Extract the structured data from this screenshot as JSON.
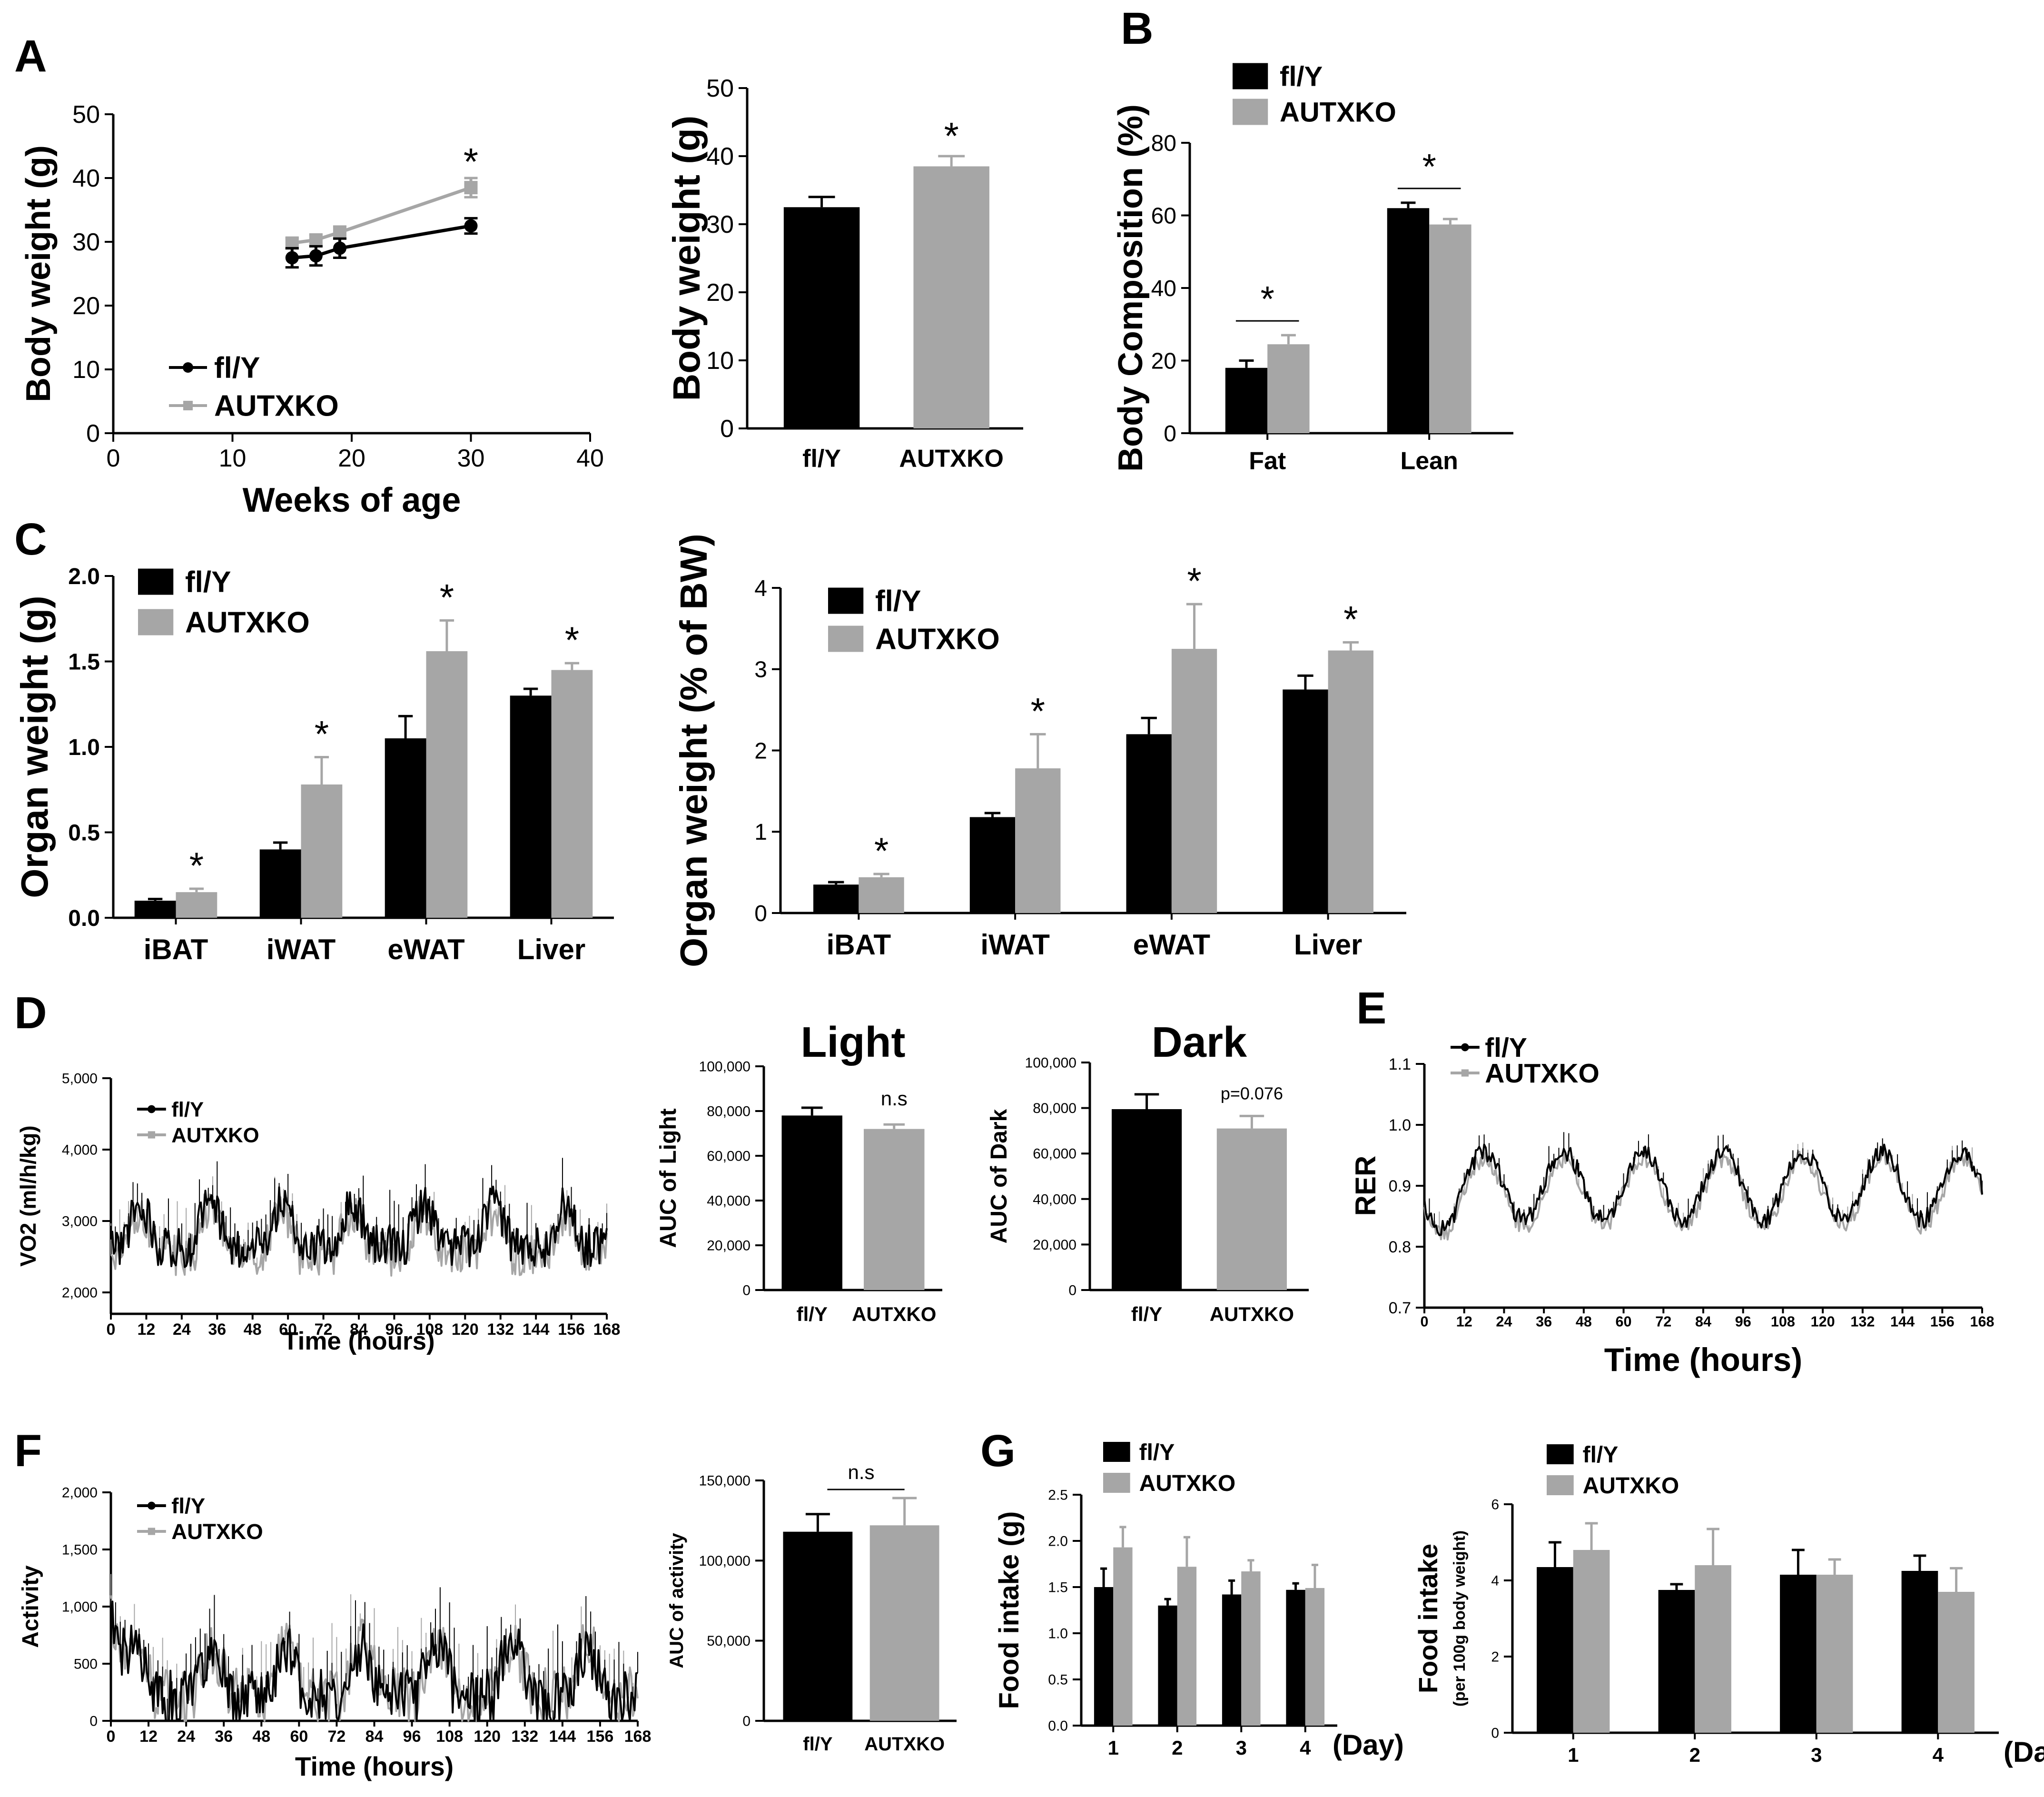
{
  "colors": {
    "fl": "#000000",
    "ko": "#a6a6a6"
  },
  "legend": {
    "fl": "fl/Y",
    "ko": "AUTXKO"
  },
  "panels": {
    "A": "A",
    "B": "B",
    "C": "C",
    "D": "D",
    "E": "E",
    "F": "F",
    "G": "G"
  },
  "chart_data": [
    {
      "id": "A1",
      "type": "line",
      "panel": "A",
      "xlabel": "Weeks of age",
      "ylabel": "Body weight (g)",
      "xlim": [
        0,
        40
      ],
      "ylim": [
        0,
        50
      ],
      "xticks": [
        0,
        10,
        20,
        30,
        40
      ],
      "yticks": [
        0,
        10,
        20,
        30,
        40,
        50
      ],
      "legend_position": "bottom-left",
      "series": [
        {
          "name": "fl/Y",
          "x": [
            15,
            17,
            19,
            30
          ],
          "y": [
            27.5,
            27.8,
            29.0,
            32.5
          ],
          "err": [
            1.5,
            1.5,
            1.5,
            1.2
          ]
        },
        {
          "name": "AUTXKO",
          "x": [
            15,
            17,
            19,
            30
          ],
          "y": [
            29.8,
            30.3,
            31.5,
            38.5
          ],
          "err": [
            0.8,
            0.8,
            0.9,
            1.5
          ]
        }
      ],
      "annotations": [
        {
          "x": 30,
          "y": 42,
          "text": "*"
        }
      ]
    },
    {
      "id": "A2",
      "type": "bar",
      "panel": "A",
      "ylabel": "Body weight (g)",
      "ylim": [
        0,
        50
      ],
      "yticks": [
        0,
        10,
        20,
        30,
        40,
        50
      ],
      "categories": [
        "fl/Y",
        "AUTXKO"
      ],
      "values": [
        32.5,
        38.5
      ],
      "err": [
        1.5,
        1.5
      ],
      "annotations": [
        {
          "bar": 1,
          "text": "*"
        }
      ]
    },
    {
      "id": "B",
      "type": "bar",
      "panel": "B",
      "ylabel": "Body Composition (%)",
      "ylim": [
        0,
        80
      ],
      "yticks": [
        0,
        20,
        40,
        60,
        80
      ],
      "categories": [
        "Fat",
        "Lean"
      ],
      "series": [
        {
          "name": "fl/Y",
          "values": [
            18,
            62
          ],
          "err": [
            2,
            1.5
          ]
        },
        {
          "name": "AUTXKO",
          "values": [
            24.5,
            57.5
          ],
          "err": [
            2.5,
            1.5
          ]
        }
      ],
      "legend_position": "top-left",
      "annotations": [
        {
          "category": 0,
          "text": "*"
        },
        {
          "category": 1,
          "text": "*"
        }
      ]
    },
    {
      "id": "C1",
      "type": "bar",
      "panel": "C",
      "ylabel": "Organ weight (g)",
      "ylim": [
        0,
        2.0
      ],
      "yticks": [
        "0.0",
        "0.5",
        "1.0",
        "1.5",
        "2.0"
      ],
      "categories": [
        "iBAT",
        "iWAT",
        "eWAT",
        "Liver"
      ],
      "series": [
        {
          "name": "fl/Y",
          "values": [
            0.1,
            0.4,
            1.05,
            1.3
          ],
          "err": [
            0.01,
            0.04,
            0.13,
            0.04
          ]
        },
        {
          "name": "AUTXKO",
          "values": [
            0.15,
            0.78,
            1.56,
            1.45
          ],
          "err": [
            0.02,
            0.16,
            0.18,
            0.04
          ]
        }
      ],
      "legend_position": "top-left",
      "annotations": [
        {
          "category": 0,
          "text": "*"
        },
        {
          "category": 1,
          "text": "*"
        },
        {
          "category": 2,
          "text": "*"
        },
        {
          "category": 3,
          "text": "*"
        }
      ]
    },
    {
      "id": "C2",
      "type": "bar",
      "panel": "C",
      "ylabel": "Organ weight (% of BW)",
      "ylim": [
        0,
        4
      ],
      "yticks": [
        0,
        1,
        2,
        3,
        4
      ],
      "categories": [
        "iBAT",
        "iWAT",
        "eWAT",
        "Liver"
      ],
      "series": [
        {
          "name": "fl/Y",
          "values": [
            0.35,
            1.18,
            2.2,
            2.75
          ],
          "err": [
            0.03,
            0.05,
            0.2,
            0.17
          ]
        },
        {
          "name": "AUTXKO",
          "values": [
            0.44,
            1.78,
            3.25,
            3.23
          ],
          "err": [
            0.04,
            0.42,
            0.55,
            0.1
          ]
        }
      ],
      "legend_position": "top-left",
      "annotations": [
        {
          "category": 0,
          "text": "*"
        },
        {
          "category": 1,
          "text": "*"
        },
        {
          "category": 2,
          "text": "*"
        },
        {
          "category": 3,
          "text": "*"
        }
      ]
    },
    {
      "id": "D1",
      "type": "line",
      "panel": "D",
      "xlabel": "Time (hours)",
      "ylabel": "VO2 (ml/h/kg)",
      "xlim": [
        0,
        168
      ],
      "ylim": [
        1700,
        5000
      ],
      "xticks": [
        0,
        12,
        24,
        36,
        48,
        60,
        72,
        84,
        96,
        108,
        120,
        132,
        144,
        156,
        168
      ],
      "yticks": [
        "2,000",
        "3,000",
        "4,000",
        "5,000"
      ],
      "legend_position": "top-left",
      "signal": {
        "kind": "vo2"
      },
      "series": [
        {
          "name": "fl/Y"
        },
        {
          "name": "AUTXKO"
        }
      ]
    },
    {
      "id": "D2",
      "type": "bar",
      "panel": "D",
      "title": "Light",
      "ylabel": "AUC of Light",
      "ylim": [
        0,
        100000
      ],
      "yticks": [
        "0",
        "20,000",
        "40,000",
        "60,000",
        "80,000",
        "100,000"
      ],
      "categories": [
        "fl/Y",
        "AUTXKO"
      ],
      "values": [
        78000,
        72000
      ],
      "err": [
        3500,
        2000
      ],
      "annotations": [
        {
          "text": "n.s"
        }
      ]
    },
    {
      "id": "D3",
      "type": "bar",
      "panel": "D",
      "title": "Dark",
      "ylabel": "AUC of Dark",
      "ylim": [
        0,
        100000
      ],
      "yticks": [
        "0",
        "20,000",
        "40,000",
        "60,000",
        "80,000",
        "100,000"
      ],
      "categories": [
        "fl/Y",
        "AUTXKO"
      ],
      "values": [
        79500,
        71000
      ],
      "err": [
        6500,
        5500
      ],
      "annotations": [
        {
          "text": "p=0.076"
        }
      ]
    },
    {
      "id": "E",
      "type": "line",
      "panel": "E",
      "xlabel": "Time (hours)",
      "ylabel": "RER",
      "xlim": [
        0,
        168
      ],
      "ylim": [
        0.7,
        1.1
      ],
      "xticks": [
        0,
        12,
        24,
        36,
        48,
        60,
        72,
        84,
        96,
        108,
        120,
        132,
        144,
        156,
        168
      ],
      "yticks": [
        "0.7",
        "0.8",
        "0.9",
        "1.0",
        "1.1"
      ],
      "legend_position": "top-left",
      "signal": {
        "kind": "rer"
      },
      "series": [
        {
          "name": "fl/Y"
        },
        {
          "name": "AUTXKO"
        }
      ]
    },
    {
      "id": "F1",
      "type": "line",
      "panel": "F",
      "xlabel": "Time (hours)",
      "ylabel": "Activity",
      "xlim": [
        0,
        168
      ],
      "ylim": [
        0,
        2000
      ],
      "xticks": [
        0,
        12,
        24,
        36,
        48,
        60,
        72,
        84,
        96,
        108,
        120,
        132,
        144,
        156,
        168
      ],
      "yticks": [
        "0",
        "500",
        "1,000",
        "1,500",
        "2,000"
      ],
      "legend_position": "top-left",
      "signal": {
        "kind": "activity"
      },
      "series": [
        {
          "name": "fl/Y"
        },
        {
          "name": "AUTXKO"
        }
      ]
    },
    {
      "id": "F2",
      "type": "bar",
      "panel": "F",
      "ylabel": "AUC of activity",
      "ylim": [
        0,
        150000
      ],
      "yticks": [
        "0",
        "50,000",
        "100,000",
        "150,000"
      ],
      "categories": [
        "fl/Y",
        "AUTXKO"
      ],
      "values": [
        118000,
        122000
      ],
      "err": [
        11000,
        17000
      ],
      "annotations": [
        {
          "text": "n.s"
        }
      ]
    },
    {
      "id": "G1",
      "type": "bar",
      "panel": "G",
      "ylabel": "Food intake (g)",
      "ylim": [
        0,
        2.5
      ],
      "yticks": [
        "0.0",
        "0.5",
        "1.0",
        "1.5",
        "2.0",
        "2.5"
      ],
      "categories": [
        "1",
        "2",
        "3",
        "4"
      ],
      "xunit": "(Day)",
      "series": [
        {
          "name": "fl/Y",
          "values": [
            1.5,
            1.3,
            1.42,
            1.47
          ],
          "err": [
            0.2,
            0.07,
            0.15,
            0.07
          ]
        },
        {
          "name": "AUTXKO",
          "values": [
            1.93,
            1.72,
            1.67,
            1.49
          ],
          "err": [
            0.22,
            0.32,
            0.12,
            0.25
          ]
        }
      ],
      "legend_position": "top-left"
    },
    {
      "id": "G2",
      "type": "bar",
      "panel": "G",
      "ylabel": "Food intake",
      "ylabel2": "(per 100g body weight)",
      "ylim": [
        0,
        6
      ],
      "yticks": [
        0,
        2,
        4,
        6
      ],
      "categories": [
        "1",
        "2",
        "3",
        "4"
      ],
      "xunit": "(Day)",
      "series": [
        {
          "name": "fl/Y",
          "values": [
            4.35,
            3.75,
            4.15,
            4.25
          ],
          "err": [
            0.65,
            0.15,
            0.65,
            0.4
          ]
        },
        {
          "name": "AUTXKO",
          "values": [
            4.8,
            4.4,
            4.15,
            3.7
          ],
          "err": [
            0.7,
            0.95,
            0.4,
            0.62
          ]
        }
      ],
      "legend_position": "top-left"
    }
  ]
}
